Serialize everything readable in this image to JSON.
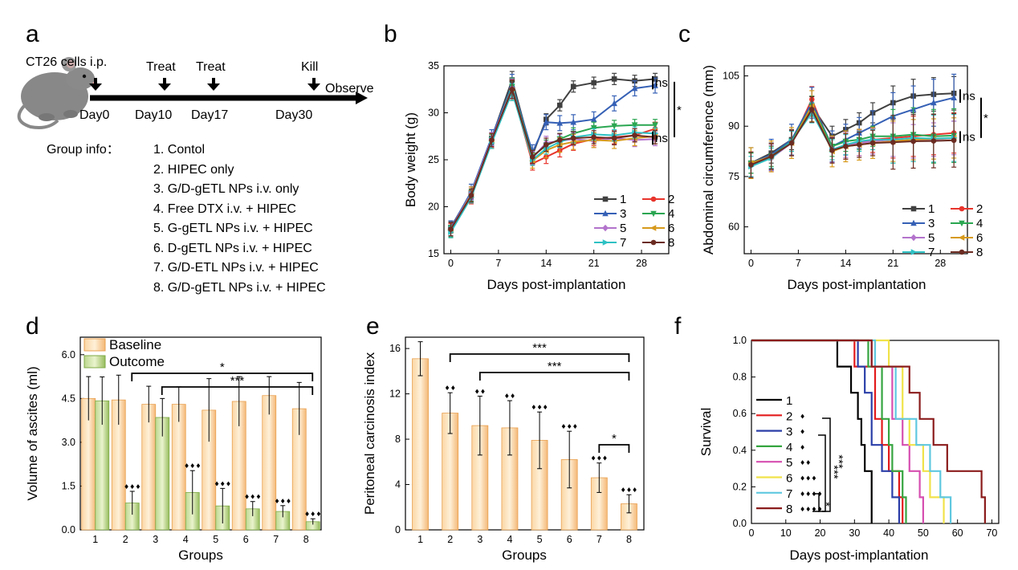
{
  "panels": {
    "a": {
      "label": "a",
      "timeline_labels": [
        "CT26 cells i.p.",
        "Treat",
        "Treat",
        "Kill"
      ],
      "days": [
        "Day0",
        "Day10",
        "Day17",
        "Day30"
      ],
      "observe": "Observe",
      "group_info_label": "Group info：",
      "groups": [
        "1. Contol",
        "2. HIPEC only",
        "3. G/D-gETL NPs i.v. only",
        "4. Free DTX i.v. + HIPEC",
        "5. G-gETL NPs i.v. + HIPEC",
        "6. D-gETL NPs i.v. + HIPEC",
        "7. G/D-ETL NPs i.v. + HIPEC",
        "8. G/D-gETL NPs i.v. + HIPEC"
      ]
    },
    "b": {
      "label": "b"
    },
    "c": {
      "label": "c"
    },
    "d": {
      "label": "d"
    },
    "e": {
      "label": "e"
    },
    "f": {
      "label": "f"
    }
  },
  "colors": [
    "#404040",
    "#e8342c",
    "#3560b5",
    "#2aa651",
    "#b373cc",
    "#d79a1c",
    "#2ec1c4",
    "#6b2c22"
  ],
  "survival_colors": [
    "#000000",
    "#e31a1c",
    "#2b3fa8",
    "#36a540",
    "#d64fb0",
    "#f0e24a",
    "#5fc8e0",
    "#8b1c1c"
  ],
  "chart_data": [
    {
      "id": "b",
      "type": "line",
      "xlabel": "Days post-implantation",
      "ylabel": "Body weight (g)",
      "xlim": [
        -1,
        32
      ],
      "ylim": [
        15,
        35
      ],
      "xticks": [
        0,
        7,
        14,
        21,
        28
      ],
      "yticks": [
        15,
        20,
        25,
        30,
        35
      ],
      "x": [
        0,
        3,
        6,
        9,
        12,
        14,
        16,
        18,
        21,
        24,
        27,
        30
      ],
      "series": [
        {
          "name": "1",
          "values": [
            17.8,
            21.5,
            27.3,
            33.5,
            25.5,
            29.3,
            30.8,
            32.8,
            33.2,
            33.6,
            33.4,
            33.6
          ]
        },
        {
          "name": "2",
          "values": [
            17.5,
            21.0,
            27.0,
            32.5,
            24.6,
            25.3,
            26.0,
            26.7,
            27.2,
            27.4,
            27.6,
            28.3
          ]
        },
        {
          "name": "3",
          "values": [
            17.7,
            21.6,
            27.4,
            33.0,
            25.8,
            29.0,
            28.9,
            29.0,
            29.3,
            31.0,
            32.6,
            32.9
          ]
        },
        {
          "name": "4",
          "values": [
            17.4,
            21.2,
            27.1,
            32.8,
            25.4,
            26.5,
            27.2,
            27.8,
            28.4,
            28.6,
            28.7,
            28.7
          ]
        },
        {
          "name": "5",
          "values": [
            17.6,
            21.4,
            27.2,
            32.6,
            25.2,
            26.8,
            27.0,
            27.2,
            27.0,
            27.3,
            27.1,
            27.2
          ]
        },
        {
          "name": "6",
          "values": [
            17.5,
            21.3,
            27.0,
            32.4,
            24.9,
            26.0,
            26.6,
            26.9,
            27.1,
            27.0,
            27.3,
            27.5
          ]
        },
        {
          "name": "7",
          "values": [
            17.3,
            21.0,
            26.8,
            32.2,
            25.0,
            26.2,
            26.9,
            27.4,
            27.7,
            27.6,
            27.9,
            27.8
          ]
        },
        {
          "name": "8",
          "values": [
            17.6,
            21.2,
            27.1,
            32.5,
            25.3,
            26.6,
            27.1,
            27.3,
            27.4,
            27.3,
            27.6,
            27.4
          ]
        }
      ],
      "annotations": [
        "ns",
        "ns",
        "*"
      ],
      "legend": "bottom-right"
    },
    {
      "id": "c",
      "type": "line",
      "xlabel": "Days post-implantation",
      "ylabel": "Abdominal circumference (mm)",
      "xlim": [
        -1,
        32
      ],
      "ylim": [
        52,
        108
      ],
      "xticks": [
        0,
        7,
        14,
        21,
        28
      ],
      "yticks": [
        60,
        75,
        90,
        105
      ],
      "x": [
        0,
        3,
        6,
        9,
        12,
        14,
        16,
        18,
        21,
        24,
        27,
        30
      ],
      "series": [
        {
          "name": "1",
          "values": [
            79,
            82,
            86,
            96,
            87,
            89,
            91,
            94,
            97,
            99,
            99.5,
            99.8
          ]
        },
        {
          "name": "2",
          "values": [
            78.5,
            81,
            85,
            98,
            83,
            84,
            85,
            86,
            86.5,
            87,
            87.5,
            88
          ]
        },
        {
          "name": "3",
          "values": [
            79,
            81.5,
            86,
            97,
            84,
            86,
            88,
            90,
            93,
            95,
            97,
            98.5
          ]
        },
        {
          "name": "4",
          "values": [
            79,
            81,
            85.5,
            96,
            84,
            85.5,
            86,
            87,
            87,
            87.5,
            87,
            87.2
          ]
        },
        {
          "name": "5",
          "values": [
            78.5,
            80.5,
            85,
            95,
            83,
            84.5,
            85,
            85.5,
            86,
            85.5,
            86,
            86.5
          ]
        },
        {
          "name": "6",
          "values": [
            79,
            81,
            85,
            96,
            82.5,
            84,
            84.5,
            85,
            85.5,
            86,
            86.2,
            86.5
          ]
        },
        {
          "name": "7",
          "values": [
            78,
            80.5,
            85.5,
            94,
            83,
            84.5,
            85.5,
            86,
            86,
            86.5,
            86.3,
            86.5
          ]
        },
        {
          "name": "8",
          "values": [
            78.5,
            81,
            85,
            95,
            82.8,
            84,
            84.5,
            85,
            85.2,
            85.5,
            85.6,
            85.8
          ]
        }
      ],
      "annotations": [
        "ns",
        "ns",
        "*"
      ],
      "legend": "bottom-right"
    },
    {
      "id": "d",
      "type": "bar",
      "xlabel": "Groups",
      "ylabel": "Volume of ascites (ml)",
      "categories": [
        "1",
        "2",
        "3",
        "4",
        "5",
        "6",
        "7",
        "8"
      ],
      "ylim": [
        0,
        6.6
      ],
      "yticks": [
        0.0,
        1.5,
        3.0,
        4.5,
        6.0
      ],
      "series": [
        {
          "name": "Baseline",
          "values": [
            4.5,
            4.45,
            4.3,
            4.3,
            4.1,
            4.4,
            4.6,
            4.15
          ],
          "errors": [
            0.75,
            0.85,
            0.62,
            0.6,
            1.08,
            0.85,
            0.65,
            0.9
          ]
        },
        {
          "name": "Outcome",
          "values": [
            4.42,
            0.92,
            3.85,
            1.28,
            0.82,
            0.72,
            0.63,
            0.28
          ],
          "errors": [
            0.82,
            0.4,
            0.65,
            0.75,
            0.6,
            0.25,
            0.2,
            0.1
          ]
        }
      ],
      "annotations": [
        "*",
        "***"
      ],
      "legend": "top-left"
    },
    {
      "id": "e",
      "type": "bar",
      "xlabel": "Groups",
      "ylabel": "Peritoneal carcinosis index",
      "categories": [
        "1",
        "2",
        "3",
        "4",
        "5",
        "6",
        "7",
        "8"
      ],
      "ylim": [
        0,
        17
      ],
      "yticks": [
        0,
        4,
        8,
        12,
        16
      ],
      "values": [
        15.1,
        10.3,
        9.2,
        9.0,
        7.9,
        6.2,
        4.6,
        2.3
      ],
      "errors": [
        1.5,
        1.8,
        2.6,
        2.4,
        2.5,
        2.5,
        1.3,
        0.8
      ],
      "annotations": [
        "***",
        "***",
        "*"
      ]
    },
    {
      "id": "f",
      "type": "line",
      "xlabel": "Days post-implantation",
      "ylabel": "Survival",
      "xlim": [
        0,
        72
      ],
      "ylim": [
        0,
        1.0
      ],
      "xticks": [
        0,
        10,
        20,
        30,
        40,
        50,
        60,
        70
      ],
      "yticks": [
        0.0,
        0.2,
        0.4,
        0.6,
        0.8,
        1.0
      ],
      "series": [
        {
          "name": "1",
          "times": [
            0,
            25,
            29,
            31,
            32,
            33,
            35
          ],
          "values": [
            1.0,
            0.857,
            0.714,
            0.571,
            0.429,
            0.286,
            0.0
          ]
        },
        {
          "name": "2",
          "times": [
            0,
            30,
            36,
            38,
            40,
            43,
            44
          ],
          "values": [
            1.0,
            0.857,
            0.571,
            0.429,
            0.286,
            0.143,
            0.0
          ]
        },
        {
          "name": "3",
          "times": [
            0,
            31,
            33,
            35,
            38,
            41,
            43
          ],
          "values": [
            1.0,
            0.857,
            0.714,
            0.429,
            0.286,
            0.143,
            0.0
          ]
        },
        {
          "name": "4",
          "times": [
            0,
            34,
            38,
            40,
            41,
            44,
            45
          ],
          "values": [
            1.0,
            0.857,
            0.571,
            0.429,
            0.286,
            0.143,
            0.0
          ]
        },
        {
          "name": "5",
          "times": [
            0,
            35,
            41,
            44,
            46,
            49,
            50
          ],
          "values": [
            1.0,
            0.857,
            0.571,
            0.429,
            0.286,
            0.143,
            0.0
          ]
        },
        {
          "name": "6",
          "times": [
            0,
            40,
            44,
            46,
            50,
            52,
            56
          ],
          "values": [
            1.0,
            0.857,
            0.571,
            0.429,
            0.286,
            0.143,
            0.0
          ]
        },
        {
          "name": "7",
          "times": [
            0,
            36,
            42,
            48,
            52,
            55,
            58
          ],
          "values": [
            1.0,
            0.857,
            0.571,
            0.429,
            0.286,
            0.143,
            0.0
          ]
        },
        {
          "name": "8",
          "times": [
            0,
            35,
            46,
            49,
            53,
            57,
            67,
            68
          ],
          "values": [
            1.0,
            0.857,
            0.714,
            0.571,
            0.429,
            0.286,
            0.143,
            0.0
          ]
        }
      ],
      "markers": [
        "♦",
        "♦",
        "♦",
        "♦♦",
        "♦♦♦",
        "♦♦♦♦",
        "♦♦♦♦"
      ],
      "annotations": [
        "***",
        "***",
        "*"
      ],
      "legend": "left"
    }
  ]
}
